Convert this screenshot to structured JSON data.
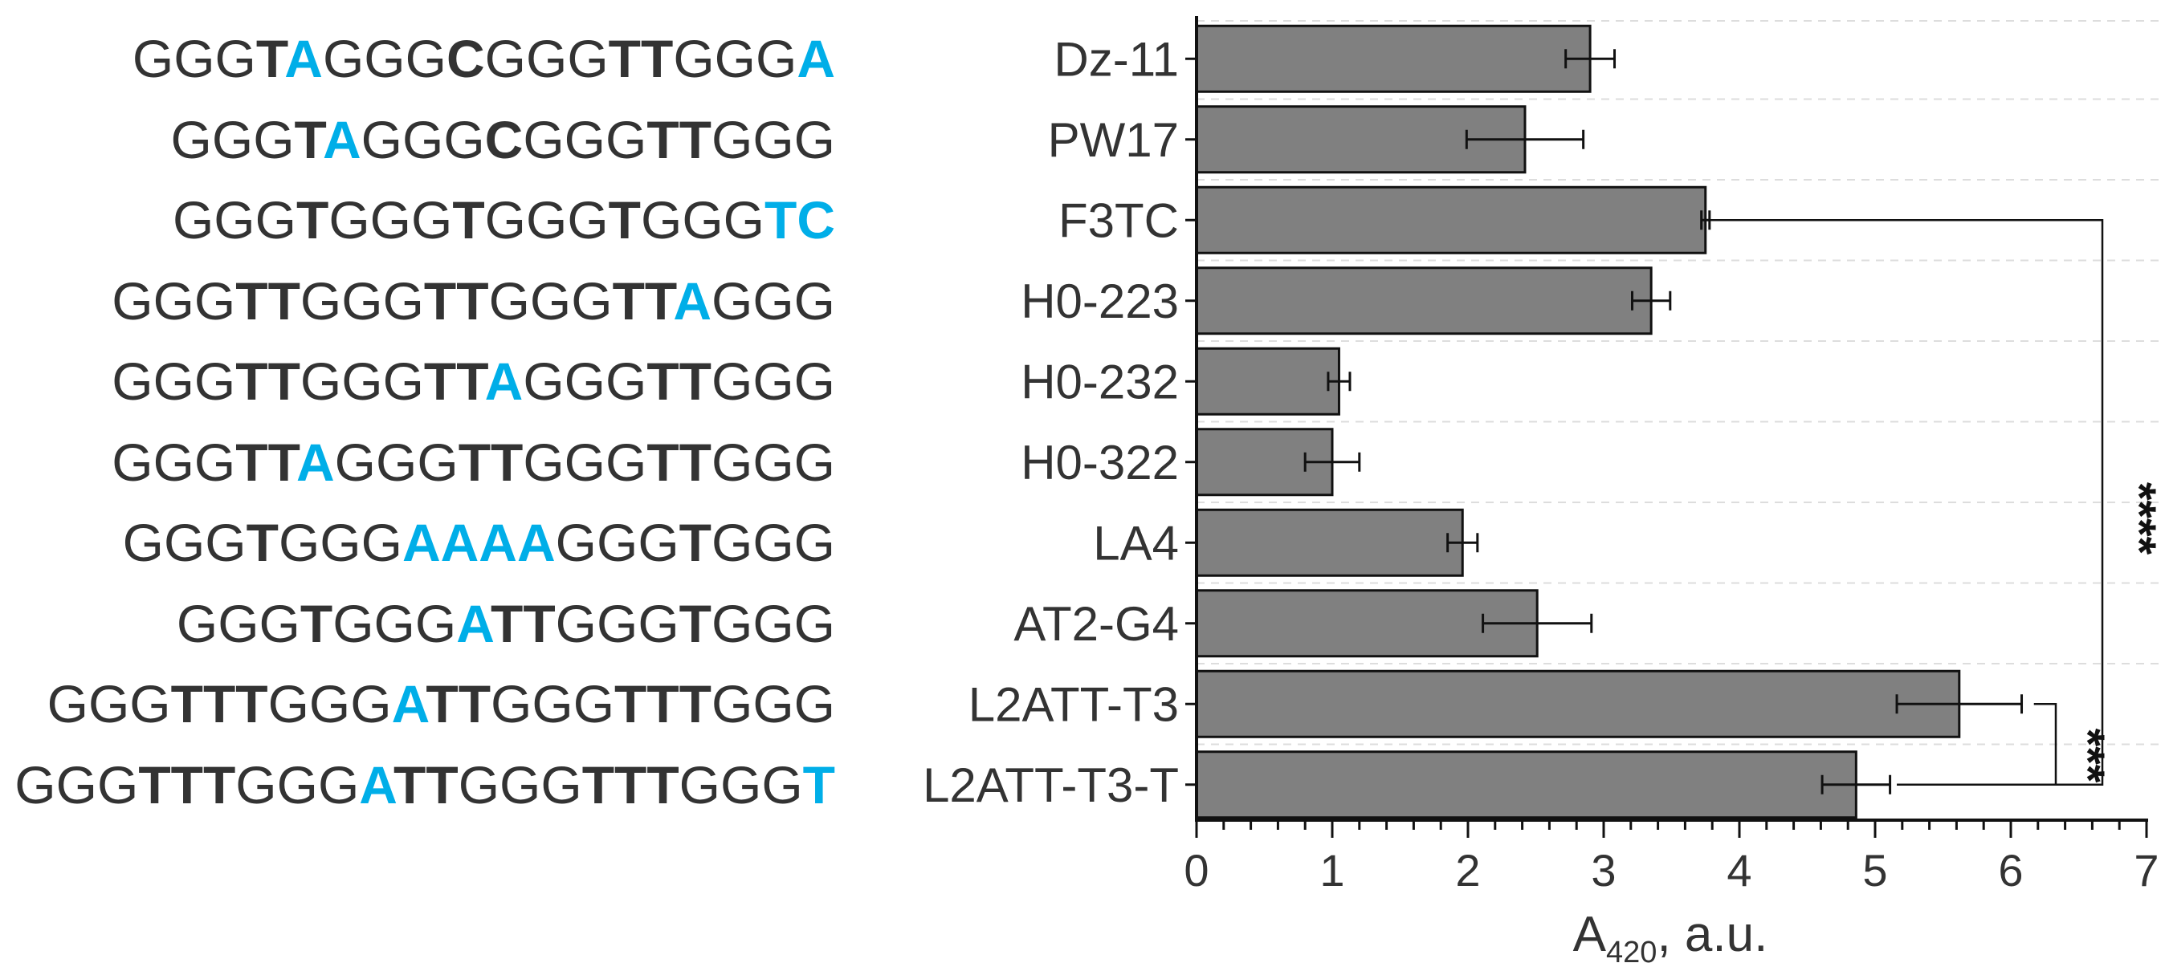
{
  "sequences": [
    [
      {
        "t": "GGG",
        "s": "n"
      },
      {
        "t": "T",
        "s": "b"
      },
      {
        "t": "A",
        "s": "hl"
      },
      {
        "t": "GGG",
        "s": "n"
      },
      {
        "t": "C",
        "s": "b"
      },
      {
        "t": "GGG",
        "s": "n"
      },
      {
        "t": "TT",
        "s": "b"
      },
      {
        "t": "GGG",
        "s": "n"
      },
      {
        "t": "A",
        "s": "hl"
      }
    ],
    [
      {
        "t": "GGG",
        "s": "n"
      },
      {
        "t": "T",
        "s": "b"
      },
      {
        "t": "A",
        "s": "hl"
      },
      {
        "t": "GGG",
        "s": "n"
      },
      {
        "t": "C",
        "s": "b"
      },
      {
        "t": "GGG",
        "s": "n"
      },
      {
        "t": "TT",
        "s": "b"
      },
      {
        "t": "GGG",
        "s": "n"
      }
    ],
    [
      {
        "t": "GGG",
        "s": "n"
      },
      {
        "t": "T",
        "s": "b"
      },
      {
        "t": "GGG",
        "s": "n"
      },
      {
        "t": "T",
        "s": "b"
      },
      {
        "t": "GGG",
        "s": "n"
      },
      {
        "t": "T",
        "s": "b"
      },
      {
        "t": "GGG",
        "s": "n"
      },
      {
        "t": "TC",
        "s": "hl"
      }
    ],
    [
      {
        "t": "GGG",
        "s": "n"
      },
      {
        "t": "TT",
        "s": "b"
      },
      {
        "t": "GGG",
        "s": "n"
      },
      {
        "t": "TT",
        "s": "b"
      },
      {
        "t": "GGG",
        "s": "n"
      },
      {
        "t": "TT",
        "s": "b"
      },
      {
        "t": "A",
        "s": "hl"
      },
      {
        "t": "GGG",
        "s": "n"
      }
    ],
    [
      {
        "t": "GGG",
        "s": "n"
      },
      {
        "t": "TT",
        "s": "b"
      },
      {
        "t": "GGG",
        "s": "n"
      },
      {
        "t": "TT",
        "s": "b"
      },
      {
        "t": "A",
        "s": "hl"
      },
      {
        "t": "GGG",
        "s": "n"
      },
      {
        "t": "TT",
        "s": "b"
      },
      {
        "t": "GGG",
        "s": "n"
      }
    ],
    [
      {
        "t": "GGG",
        "s": "n"
      },
      {
        "t": "TT",
        "s": "b"
      },
      {
        "t": "A",
        "s": "hl"
      },
      {
        "t": "GGG",
        "s": "n"
      },
      {
        "t": "TT",
        "s": "b"
      },
      {
        "t": "GGG",
        "s": "n"
      },
      {
        "t": "TT",
        "s": "b"
      },
      {
        "t": "GGG",
        "s": "n"
      }
    ],
    [
      {
        "t": "GGG",
        "s": "n"
      },
      {
        "t": "T",
        "s": "b"
      },
      {
        "t": "GGG",
        "s": "n"
      },
      {
        "t": "AAAA",
        "s": "hl"
      },
      {
        "t": "GGG",
        "s": "n"
      },
      {
        "t": "T",
        "s": "b"
      },
      {
        "t": "GGG",
        "s": "n"
      }
    ],
    [
      {
        "t": "GGG",
        "s": "n"
      },
      {
        "t": "T",
        "s": "b"
      },
      {
        "t": "GGG",
        "s": "n"
      },
      {
        "t": "A",
        "s": "hl"
      },
      {
        "t": "TT",
        "s": "b"
      },
      {
        "t": "GGG",
        "s": "n"
      },
      {
        "t": "T",
        "s": "b"
      },
      {
        "t": "GGG",
        "s": "n"
      }
    ],
    [
      {
        "t": "GGG",
        "s": "n"
      },
      {
        "t": "TTT",
        "s": "b"
      },
      {
        "t": "GGG",
        "s": "n"
      },
      {
        "t": "A",
        "s": "hl"
      },
      {
        "t": "TT",
        "s": "b"
      },
      {
        "t": "GGG",
        "s": "n"
      },
      {
        "t": "TTT",
        "s": "b"
      },
      {
        "t": "GGG",
        "s": "n"
      }
    ],
    [
      {
        "t": "GGG",
        "s": "n"
      },
      {
        "t": "TTT",
        "s": "b"
      },
      {
        "t": "GGG",
        "s": "n"
      },
      {
        "t": "A",
        "s": "hl"
      },
      {
        "t": "TT",
        "s": "b"
      },
      {
        "t": "GGG",
        "s": "n"
      },
      {
        "t": "TTT",
        "s": "b"
      },
      {
        "t": "GGG",
        "s": "n"
      },
      {
        "t": "T",
        "s": "hl"
      }
    ]
  ],
  "chart_data": {
    "type": "bar",
    "orientation": "horizontal",
    "categories": [
      "Dz-11",
      "PW17",
      "F3TC",
      "H0-223",
      "H0-232",
      "H0-322",
      "LA4",
      "AT2-G4",
      "L2ATT-T3",
      "L2ATT-T3-T"
    ],
    "values": [
      2.9,
      2.42,
      3.75,
      3.35,
      1.05,
      1.0,
      1.96,
      2.51,
      5.62,
      4.86
    ],
    "errors": [
      0.18,
      0.43,
      0.03,
      0.14,
      0.08,
      0.2,
      0.11,
      0.4,
      0.46,
      0.25
    ],
    "xlabel_main": "A",
    "xlabel_sub": "420",
    "xlabel_rest": ", a.u.",
    "xlim": [
      0,
      7
    ],
    "xticks": [
      "0",
      "1",
      "2",
      "3",
      "4",
      "5",
      "6",
      "7"
    ],
    "gridlines": "dashed, light",
    "significance": [
      {
        "from": "F3TC",
        "to": "L2ATT-T3-T",
        "label": "****"
      },
      {
        "from": "L2ATT-T3",
        "to": "L2ATT-T3-T",
        "label": "***"
      }
    ]
  },
  "colors": {
    "bar_fill": "#808080",
    "bar_stroke": "#111111",
    "highlight": "#00aee8",
    "text": "#333333",
    "grid": "#dddddd"
  }
}
